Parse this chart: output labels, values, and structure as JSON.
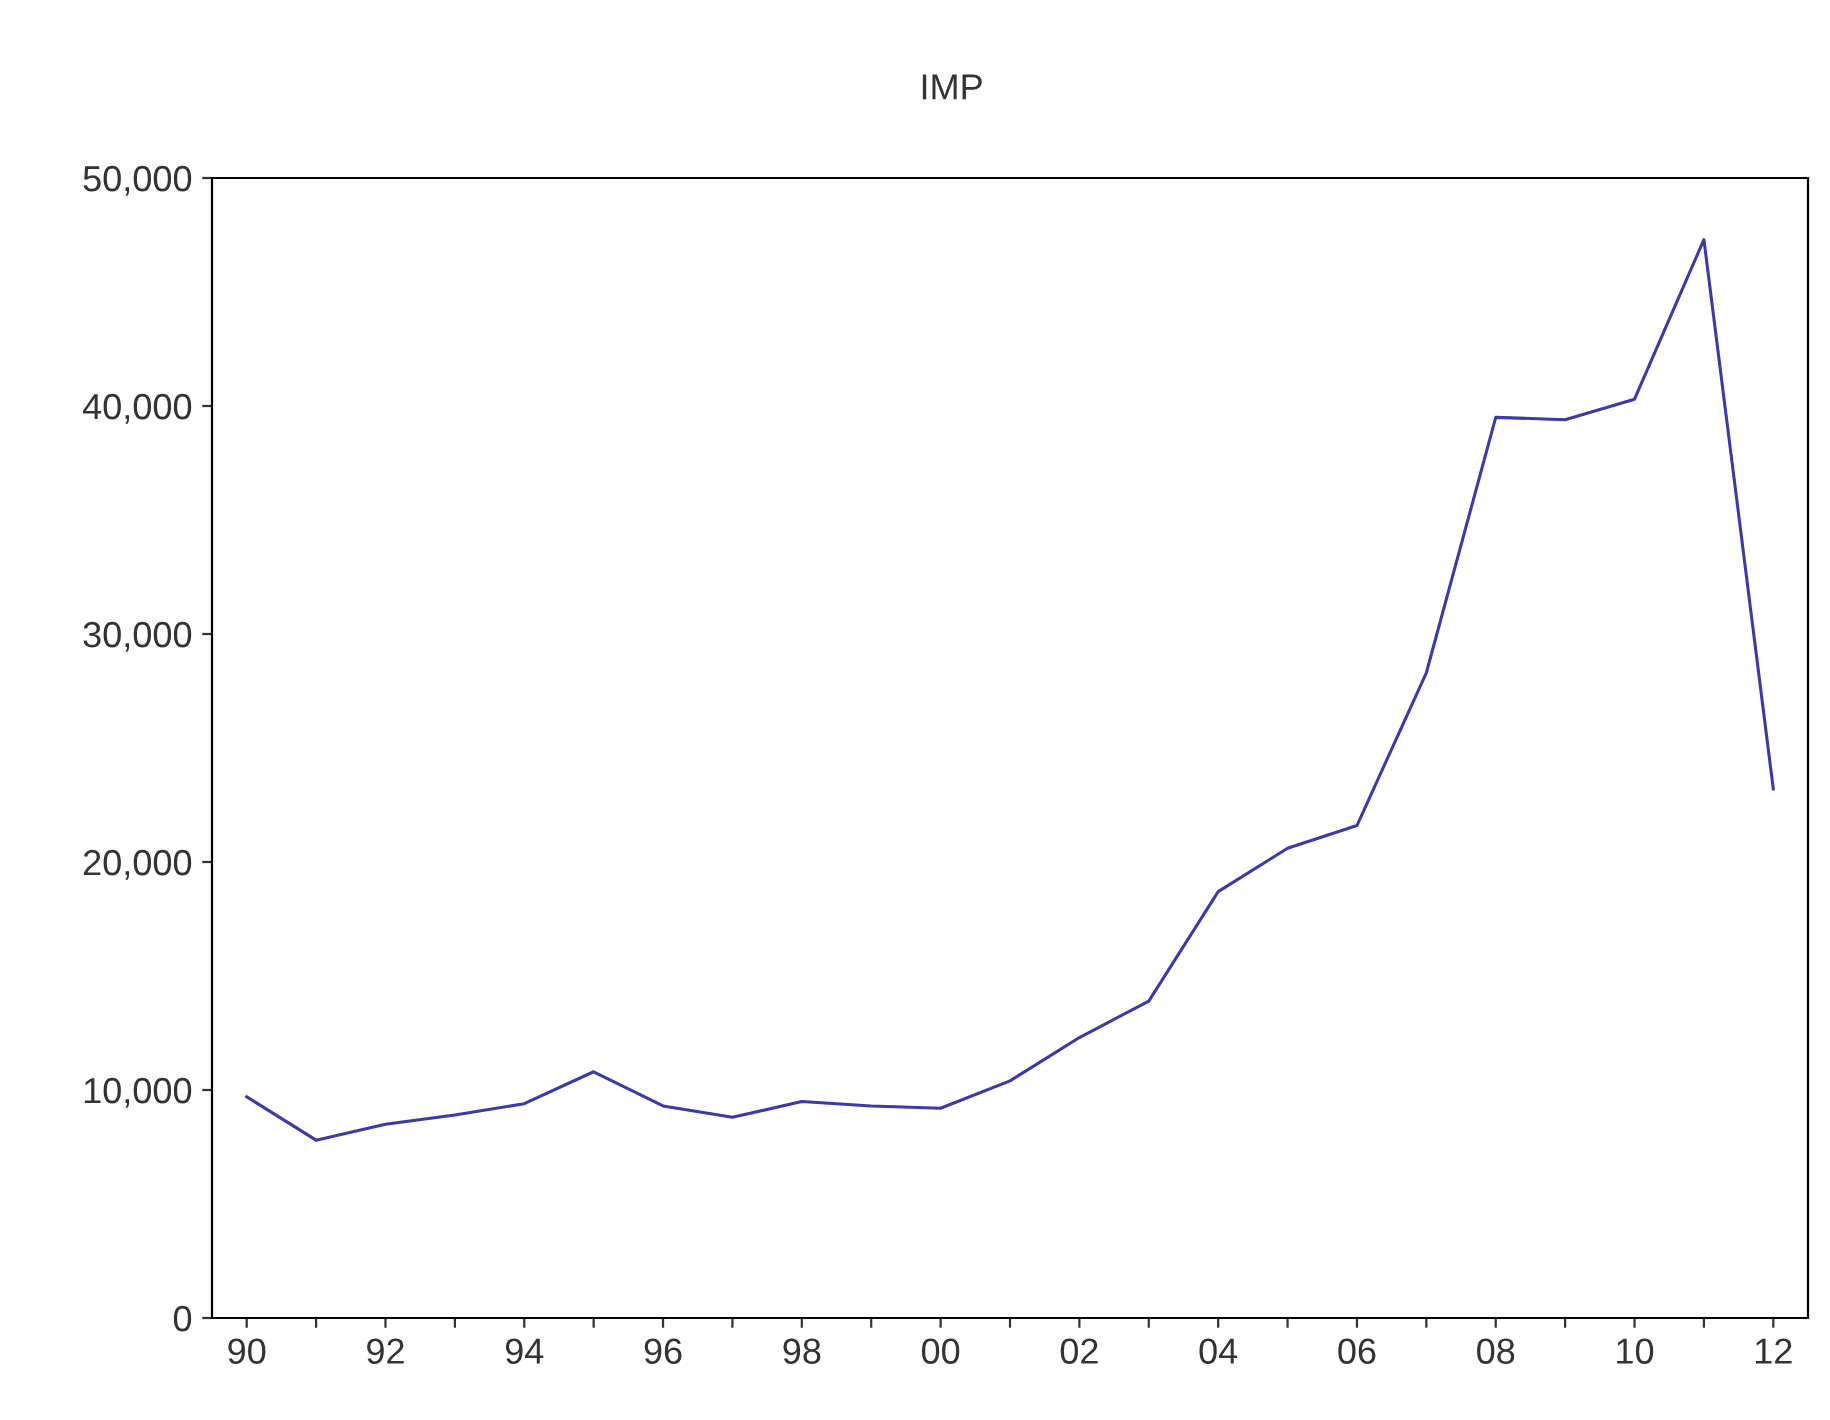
{
  "chart_data": {
    "type": "line",
    "title": "IMP",
    "x": [
      1990,
      1991,
      1992,
      1993,
      1994,
      1995,
      1996,
      1997,
      1998,
      1999,
      2000,
      2001,
      2002,
      2003,
      2004,
      2005,
      2006,
      2007,
      2008,
      2009,
      2010,
      2011,
      2012
    ],
    "series": [
      {
        "color": "#3a3aa8",
        "values": [
          9700,
          7800,
          8500,
          8900,
          9400,
          10800,
          9300,
          8800,
          9500,
          9300,
          9200,
          10400,
          12300,
          13900,
          18700,
          20600,
          21600,
          28300,
          39500,
          39400,
          40300,
          47300,
          23200
        ]
      }
    ],
    "xlim": [
      1989.5,
      2012.5
    ],
    "xticks": [
      {
        "value": 1990,
        "label": "90"
      },
      {
        "value": 1991,
        "label": null
      },
      {
        "value": 1992,
        "label": "92"
      },
      {
        "value": 1993,
        "label": null
      },
      {
        "value": 1994,
        "label": "94"
      },
      {
        "value": 1995,
        "label": null
      },
      {
        "value": 1996,
        "label": "96"
      },
      {
        "value": 1997,
        "label": null
      },
      {
        "value": 1998,
        "label": "98"
      },
      {
        "value": 1999,
        "label": null
      },
      {
        "value": 2000,
        "label": "00"
      },
      {
        "value": 2001,
        "label": null
      },
      {
        "value": 2002,
        "label": "02"
      },
      {
        "value": 2003,
        "label": null
      },
      {
        "value": 2004,
        "label": "04"
      },
      {
        "value": 2005,
        "label": null
      },
      {
        "value": 2006,
        "label": "06"
      },
      {
        "value": 2007,
        "label": null
      },
      {
        "value": 2008,
        "label": "08"
      },
      {
        "value": 2009,
        "label": null
      },
      {
        "value": 2010,
        "label": "10"
      },
      {
        "value": 2011,
        "label": null
      },
      {
        "value": 2012,
        "label": "12"
      }
    ],
    "ylim": [
      0,
      50000
    ],
    "yticks": [
      0,
      {
        "value": 10000,
        "label": "10,000"
      },
      {
        "value": 20000,
        "label": "20,000"
      },
      {
        "value": 30000,
        "label": "30,000"
      },
      {
        "value": 40000,
        "label": "40,000"
      },
      {
        "value": 50000,
        "label": "50,000"
      }
    ],
    "grid": false,
    "legend": false,
    "marker": "none",
    "line_style": "solid"
  }
}
